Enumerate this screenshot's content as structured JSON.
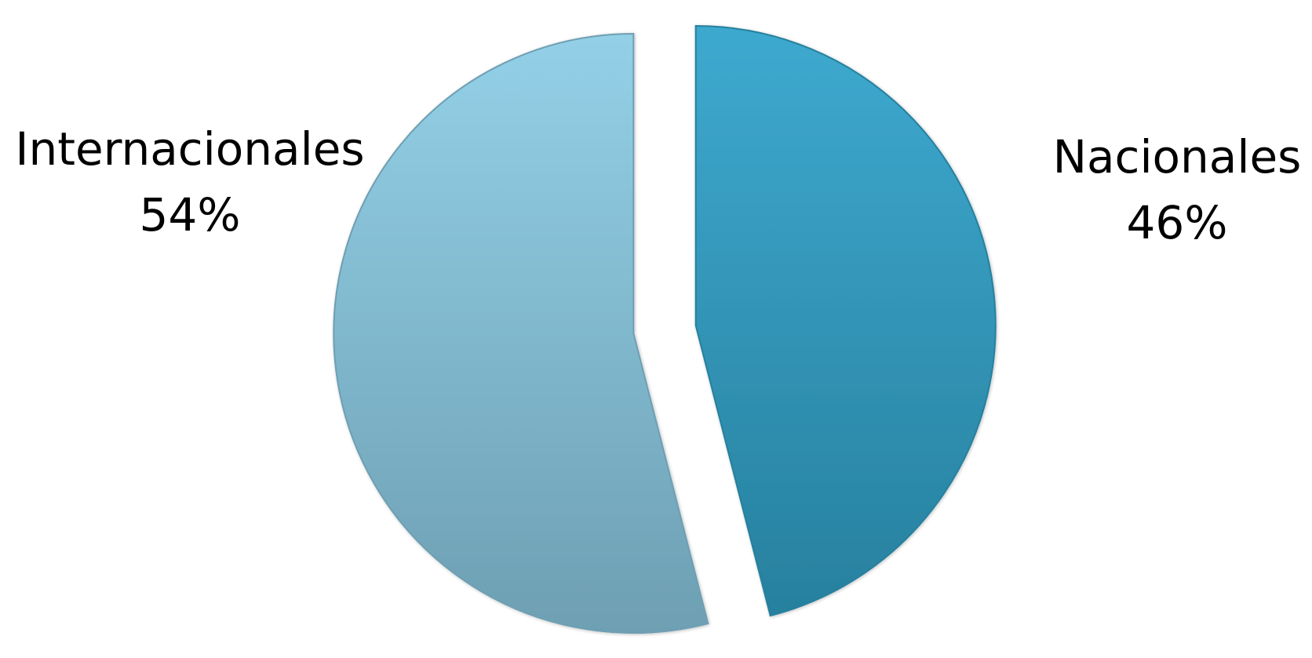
{
  "chart_data": {
    "type": "pie",
    "title": "",
    "exploded": true,
    "slices": [
      {
        "label": "Nacionales",
        "value": 46,
        "percent_label": "46%",
        "color_top": "#3ea9cf",
        "color_bottom": "#27809e"
      },
      {
        "label": "Internacionales",
        "value": 54,
        "percent_label": "54%",
        "color_top": "#93d0e7",
        "color_bottom": "#6e9fb3"
      }
    ]
  }
}
